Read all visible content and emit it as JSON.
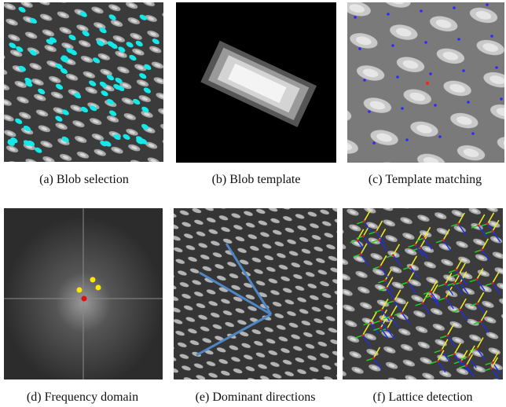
{
  "figures": [
    {
      "caption": "(a) Blob selection"
    },
    {
      "caption": "(b) Blob template"
    },
    {
      "caption": "(c) Template matching"
    },
    {
      "caption": "(d) Frequency domain"
    },
    {
      "caption": "(e) Dominant directions"
    },
    {
      "caption": "(f) Lattice detection"
    }
  ]
}
